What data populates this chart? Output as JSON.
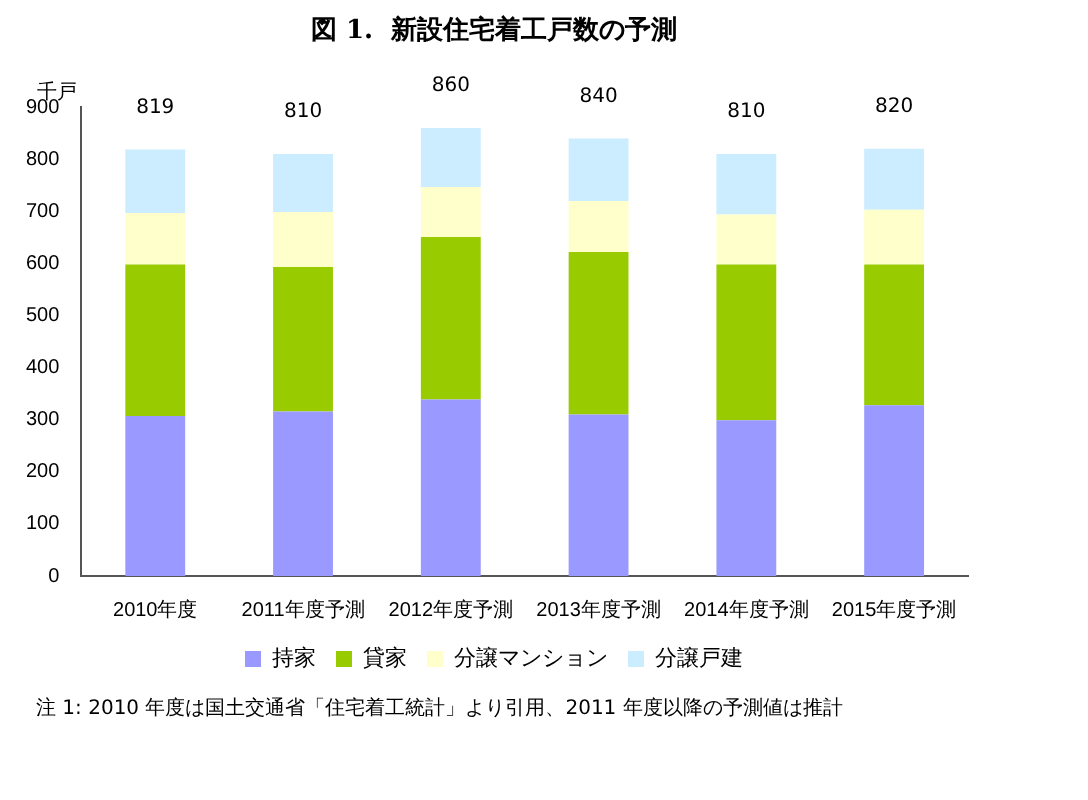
{
  "chart_data": {
    "type": "bar",
    "title": "図 1.  新設住宅着工戸数の予測",
    "ylabel": "千戸",
    "categories": [
      "2010年度",
      "2011年度予測",
      "2012年度予測",
      "2013年度予測",
      "2014年度予測",
      "2015年度予測"
    ],
    "series": [
      {
        "name": "持家",
        "color": "#9999ff",
        "values": [
          307,
          316,
          339,
          310,
          299,
          328
        ]
      },
      {
        "name": "貸家",
        "color": "#99cc00",
        "values": [
          291,
          277,
          312,
          312,
          299,
          270
        ]
      },
      {
        "name": "分譲マンション",
        "color": "#ffffcc",
        "values": [
          99,
          106,
          96,
          98,
          96,
          105
        ]
      },
      {
        "name": "分譲戸建",
        "color": "#ccecff",
        "values": [
          122,
          111,
          113,
          120,
          116,
          117
        ]
      }
    ],
    "stacked": true,
    "totals": [
      "819",
      "810",
      "860",
      "840",
      "810",
      "820"
    ],
    "ylim": [
      0,
      900
    ],
    "yticks": [
      0,
      100,
      200,
      300,
      400,
      500,
      600,
      700,
      800,
      900
    ],
    "grid": false,
    "legend": "bottom",
    "annotations": [
      "注 1: 2010 年度は国土交通省「住宅着工統計」より引用、2011 年度以降の予測値は推計"
    ]
  }
}
